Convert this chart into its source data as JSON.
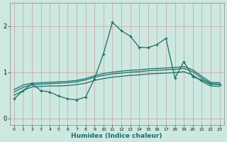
{
  "xlabel": "Humidex (Indice chaleur)",
  "bg_color": "#cce8e0",
  "line_color": "#1a6e6a",
  "grid_color": "#aaccc8",
  "xlim": [
    -0.5,
    23.5
  ],
  "ylim": [
    -0.15,
    2.5
  ],
  "yticks": [
    0,
    1,
    2
  ],
  "xtick_labels": [
    "0",
    "1",
    "2",
    "3",
    "4",
    "5",
    "6",
    "7",
    "8",
    "9",
    "10",
    "11",
    "12",
    "13",
    "14",
    "15",
    "16",
    "17",
    "18",
    "19",
    "20",
    "21",
    "22",
    "23"
  ],
  "line_top_x": [
    0,
    1,
    2,
    3,
    4,
    5,
    6,
    7,
    8,
    9,
    10,
    11,
    12,
    13,
    14,
    15,
    16,
    17,
    18,
    19,
    20,
    21,
    22,
    23
  ],
  "line_top_y": [
    0.62,
    0.72,
    0.76,
    0.77,
    0.78,
    0.79,
    0.8,
    0.82,
    0.86,
    0.92,
    0.97,
    1.0,
    1.02,
    1.04,
    1.05,
    1.07,
    1.08,
    1.09,
    1.1,
    1.12,
    1.05,
    0.91,
    0.78,
    0.77
  ],
  "line_mid_x": [
    0,
    1,
    2,
    3,
    4,
    5,
    6,
    7,
    8,
    9,
    10,
    11,
    12,
    13,
    14,
    15,
    16,
    17,
    18,
    19,
    20,
    21,
    22,
    23
  ],
  "line_mid_y": [
    0.57,
    0.67,
    0.73,
    0.74,
    0.75,
    0.76,
    0.77,
    0.79,
    0.83,
    0.89,
    0.93,
    0.96,
    0.98,
    1.0,
    1.01,
    1.03,
    1.04,
    1.05,
    1.06,
    1.08,
    1.01,
    0.87,
    0.75,
    0.74
  ],
  "line_bot_x": [
    0,
    1,
    2,
    3,
    4,
    5,
    6,
    7,
    8,
    9,
    10,
    11,
    12,
    13,
    14,
    15,
    16,
    17,
    18,
    19,
    20,
    21,
    22,
    23
  ],
  "line_bot_y": [
    0.5,
    0.6,
    0.68,
    0.69,
    0.7,
    0.7,
    0.71,
    0.73,
    0.76,
    0.82,
    0.86,
    0.89,
    0.91,
    0.93,
    0.94,
    0.96,
    0.97,
    0.98,
    0.99,
    1.01,
    0.94,
    0.8,
    0.7,
    0.69
  ],
  "line_spike_x": [
    0,
    1,
    2,
    3,
    4,
    5,
    6,
    7,
    8,
    9,
    10,
    11,
    12,
    13,
    14,
    15,
    16,
    17,
    18,
    19,
    20,
    21,
    22,
    23
  ],
  "line_spike_y": [
    0.42,
    0.6,
    0.74,
    0.6,
    0.57,
    0.48,
    0.42,
    0.4,
    0.46,
    0.86,
    1.4,
    2.08,
    1.9,
    1.78,
    1.54,
    1.53,
    1.6,
    1.73,
    0.87,
    1.23,
    0.9,
    0.83,
    0.74,
    0.73
  ]
}
